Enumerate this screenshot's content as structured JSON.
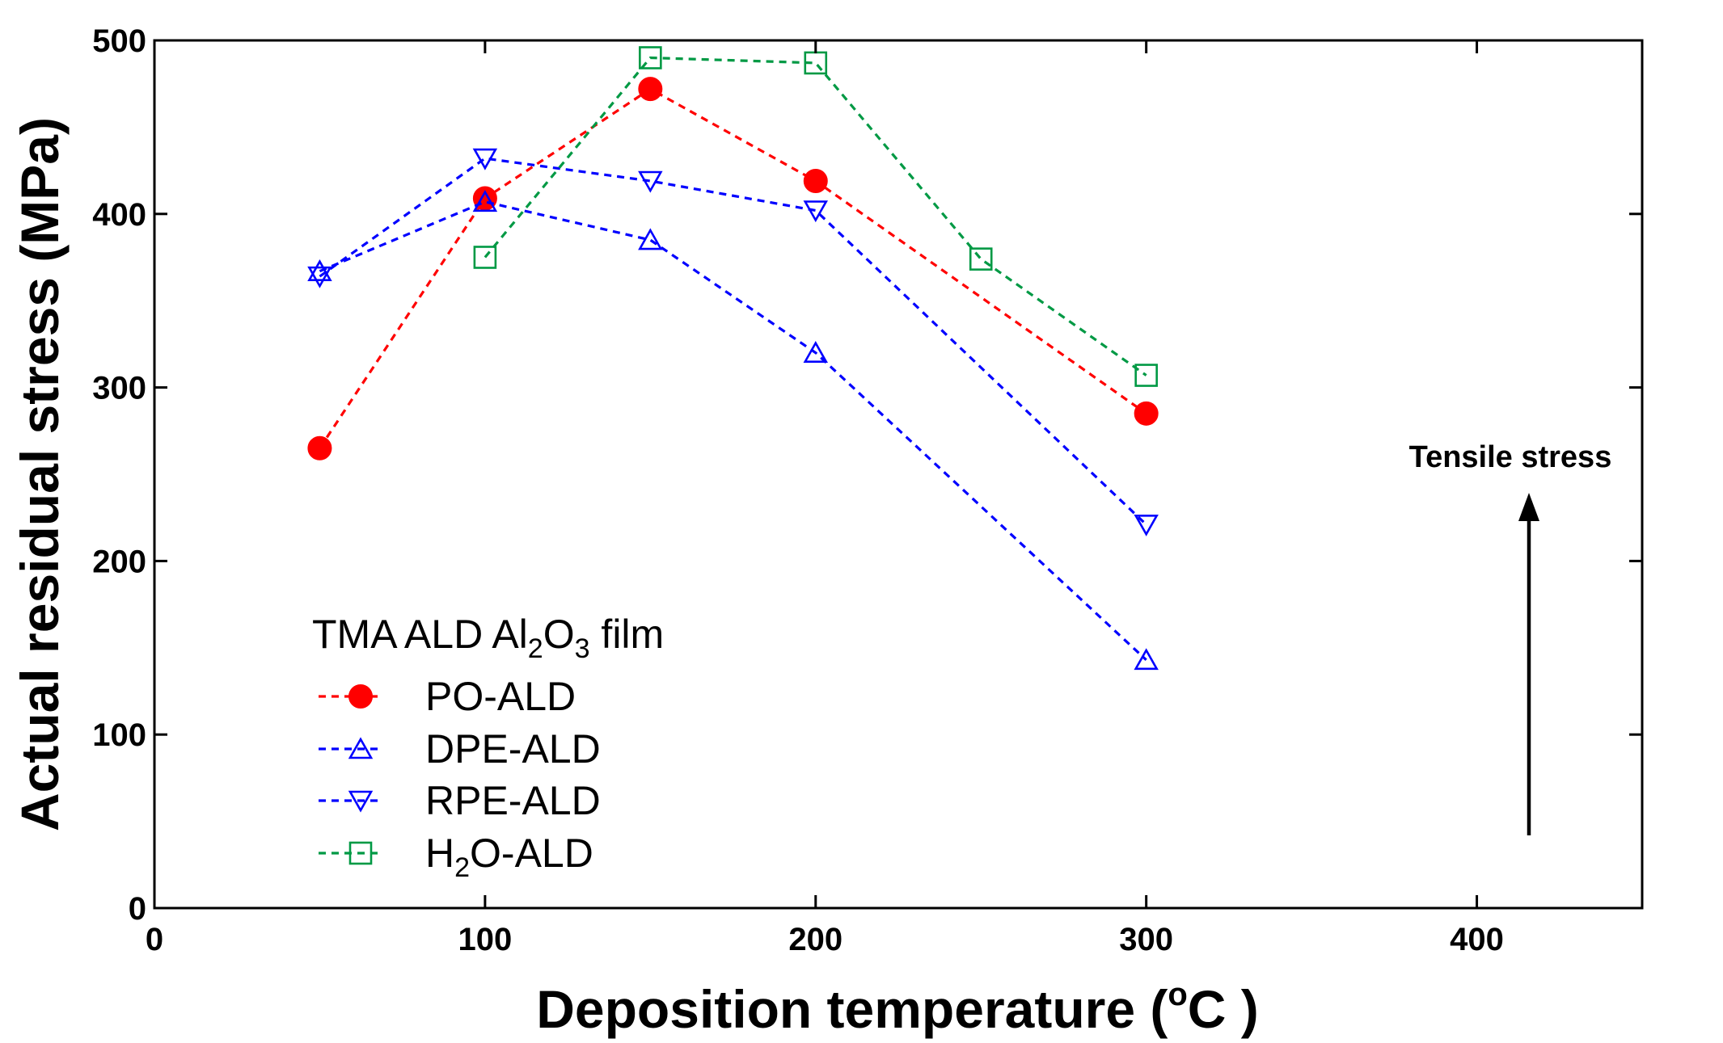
{
  "chart_data": {
    "type": "line",
    "xlabel": "Deposition temperature (",
    "xlabel_unit_sup": "o",
    "xlabel_unit": "C )",
    "ylabel": "Actual residual stress (MPa)",
    "xlim": [
      0,
      450
    ],
    "ylim": [
      0,
      500
    ],
    "xticks": [
      0,
      100,
      200,
      300,
      400
    ],
    "yticks": [
      0,
      100,
      200,
      300,
      400,
      500
    ],
    "xtick_labels": [
      "0",
      "100",
      "200",
      "300",
      "400"
    ],
    "ytick_labels": [
      "0",
      "100",
      "200",
      "300",
      "400",
      "500"
    ],
    "grid": false,
    "legend_position": "bottom-left",
    "legend_title": {
      "prefix": "TMA ALD Al",
      "sub1": "2",
      "mid": "O",
      "sub2": "3",
      "suffix": " film"
    },
    "series": [
      {
        "name": "PO-ALD",
        "name_parts": [
          "PO-ALD"
        ],
        "color": "#ff0000",
        "marker": "filled-circle",
        "x": [
          50,
          100,
          150,
          200,
          300
        ],
        "y": [
          265,
          409,
          472,
          419,
          285
        ]
      },
      {
        "name": "DPE-ALD",
        "name_parts": [
          "DPE-ALD"
        ],
        "color": "#0000ff",
        "marker": "open-triangle-up",
        "x": [
          50,
          100,
          150,
          200,
          300
        ],
        "y": [
          367,
          407,
          385,
          320,
          143
        ]
      },
      {
        "name": "RPE-ALD",
        "name_parts": [
          "RPE-ALD"
        ],
        "color": "#0000ff",
        "marker": "open-triangle-down",
        "x": [
          50,
          100,
          150,
          200,
          300
        ],
        "y": [
          364,
          432,
          419,
          402,
          221
        ]
      },
      {
        "name": "H2O-ALD",
        "name_parts": [
          "H",
          "2",
          "O-ALD"
        ],
        "color": "#009944",
        "marker": "open-square",
        "x": [
          100,
          150,
          200,
          250,
          300
        ],
        "y": [
          375,
          490,
          487,
          374,
          307
        ]
      }
    ],
    "annotations": [
      {
        "text": "Tensile stress",
        "arrow": "up"
      }
    ]
  }
}
